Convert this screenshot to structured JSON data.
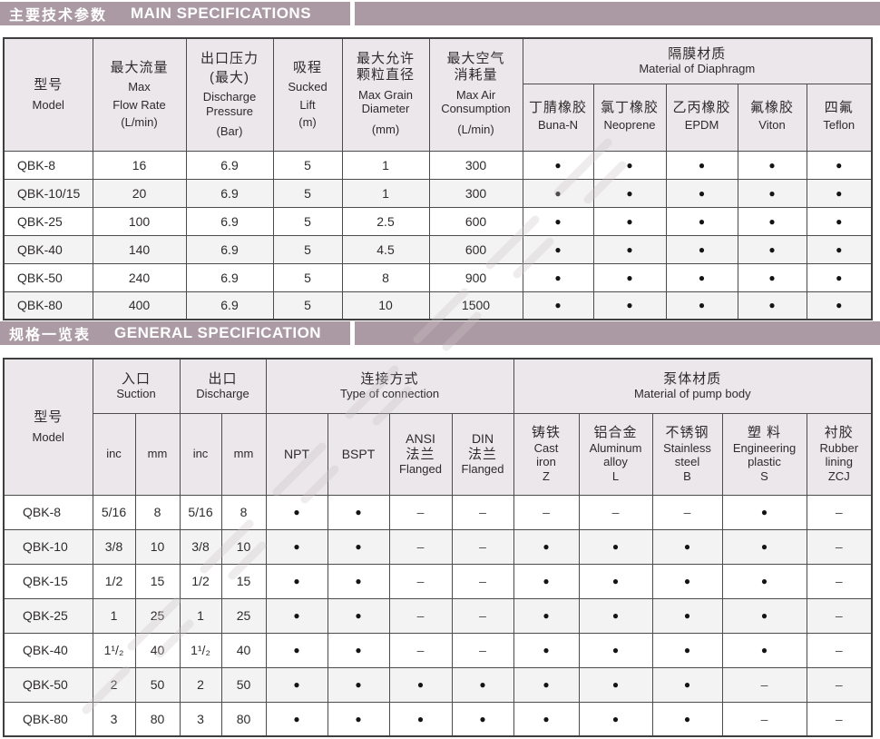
{
  "colors": {
    "bar": "#ab9aa3",
    "header_bg": "#ebe7ea",
    "alt_row": "#f4f3f4",
    "border": "#4c4c4c",
    "text": "#2e2b2c"
  },
  "legend": {
    "present": "●",
    "absent": "–"
  },
  "section1": {
    "title_zh": "主要技术参数",
    "title_en": "MAIN SPECIFICATIONS"
  },
  "section2": {
    "title_zh": "规格一览表",
    "title_en": "GENERAL SPECIFICATION"
  },
  "table1": {
    "header": {
      "model": {
        "zh": "型号",
        "en": "Model"
      },
      "flow": {
        "zh": "最大流量",
        "en1": "Max",
        "en2": "Flow Rate",
        "unit": "(L/min)"
      },
      "pressure": {
        "zh": "出口压力",
        "zh2": "(最大)",
        "en1": "Discharge",
        "en2": "Pressure",
        "unit": "(Bar)"
      },
      "lift": {
        "zh": "吸程",
        "en1": "Sucked",
        "en2": "Lift",
        "unit": "(m)"
      },
      "grain": {
        "zh": "最大允许",
        "zh2": "颗粒直径",
        "en1": "Max Grain",
        "en2": "Diameter",
        "unit": "(mm)"
      },
      "air": {
        "zh": "最大空气",
        "zh2": "消耗量",
        "en1": "Max Air",
        "en2": "Consumption",
        "unit": "(L/min)"
      },
      "diaphragm": {
        "zh": "隔膜材质",
        "en": "Material of Diaphragm"
      },
      "materials": [
        {
          "zh": "丁腈橡胶",
          "en": "Buna-N"
        },
        {
          "zh": "氯丁橡胶",
          "en": "Neoprene"
        },
        {
          "zh": "乙丙橡胶",
          "en": "EPDM"
        },
        {
          "zh": "氟橡胶",
          "en": "Viton"
        },
        {
          "zh": "四氟",
          "en": "Teflon"
        }
      ]
    },
    "rows": [
      [
        "QBK-8",
        "16",
        "6.9",
        "5",
        "1",
        "300",
        "●",
        "●",
        "●",
        "●",
        "●"
      ],
      [
        "QBK-10/15",
        "20",
        "6.9",
        "5",
        "1",
        "300",
        "●",
        "●",
        "●",
        "●",
        "●"
      ],
      [
        "QBK-25",
        "100",
        "6.9",
        "5",
        "2.5",
        "600",
        "●",
        "●",
        "●",
        "●",
        "●"
      ],
      [
        "QBK-40",
        "140",
        "6.9",
        "5",
        "4.5",
        "600",
        "●",
        "●",
        "●",
        "●",
        "●"
      ],
      [
        "QBK-50",
        "240",
        "6.9",
        "5",
        "8",
        "900",
        "●",
        "●",
        "●",
        "●",
        "●"
      ],
      [
        "QBK-80",
        "400",
        "6.9",
        "5",
        "10",
        "1500",
        "●",
        "●",
        "●",
        "●",
        "●"
      ]
    ]
  },
  "table2": {
    "header": {
      "model": {
        "zh": "型号",
        "en": "Model"
      },
      "suction": {
        "zh": "入口",
        "en": "Suction"
      },
      "discharge": {
        "zh": "出口",
        "en": "Discharge"
      },
      "connection": {
        "zh": "连接方式",
        "en": "Type of connection"
      },
      "body": {
        "zh": "泵体材质",
        "en": "Material of pump body"
      },
      "sub": {
        "inc1": "inc",
        "mm1": "mm",
        "inc2": "inc",
        "mm2": "mm",
        "npt": "NPT",
        "bspt": "BSPT",
        "ansi": {
          "l1": "ANSI",
          "l2": "法兰",
          "l3": "Flanged"
        },
        "din": {
          "l1": "DIN",
          "l2": "法兰",
          "l3": "Flanged"
        },
        "cast": {
          "zh": "铸铁",
          "en1": "Cast",
          "en2": "iron",
          "code": "Z"
        },
        "aluminum": {
          "zh": "铝合金",
          "en1": "Aluminum",
          "en2": "alloy",
          "code": "L"
        },
        "stainless": {
          "zh": "不锈钢",
          "en1": "Stainless",
          "en2": "steel",
          "code": "B"
        },
        "plastic": {
          "zh": "塑 料",
          "en1": "Engineering",
          "en2": "plastic",
          "code": "S"
        },
        "rubber": {
          "zh": "衬胶",
          "en1": "Rubber",
          "en2": "lining",
          "code": "ZCJ"
        }
      }
    },
    "rows": [
      [
        "QBK-8",
        "5/16",
        "8",
        "5/16",
        "8",
        "●",
        "●",
        "–",
        "–",
        "–",
        "–",
        "–",
        "●",
        "–"
      ],
      [
        "QBK-10",
        "3/8",
        "10",
        "3/8",
        "10",
        "●",
        "●",
        "–",
        "–",
        "●",
        "●",
        "●",
        "●",
        "–"
      ],
      [
        "QBK-15",
        "1/2",
        "15",
        "1/2",
        "15",
        "●",
        "●",
        "–",
        "–",
        "●",
        "●",
        "●",
        "●",
        "–"
      ],
      [
        "QBK-25",
        "1",
        "25",
        "1",
        "25",
        "●",
        "●",
        "–",
        "–",
        "●",
        "●",
        "●",
        "●",
        "–"
      ],
      [
        "QBK-40",
        "1¹/₂",
        "40",
        "1¹/₂",
        "40",
        "●",
        "●",
        "–",
        "–",
        "●",
        "●",
        "●",
        "●",
        "–"
      ],
      [
        "QBK-50",
        "2",
        "50",
        "2",
        "50",
        "●",
        "●",
        "●",
        "●",
        "●",
        "●",
        "●",
        "–",
        "–"
      ],
      [
        "QBK-80",
        "3",
        "80",
        "3",
        "80",
        "●",
        "●",
        "●",
        "●",
        "●",
        "●",
        "●",
        "–",
        "–"
      ]
    ]
  }
}
